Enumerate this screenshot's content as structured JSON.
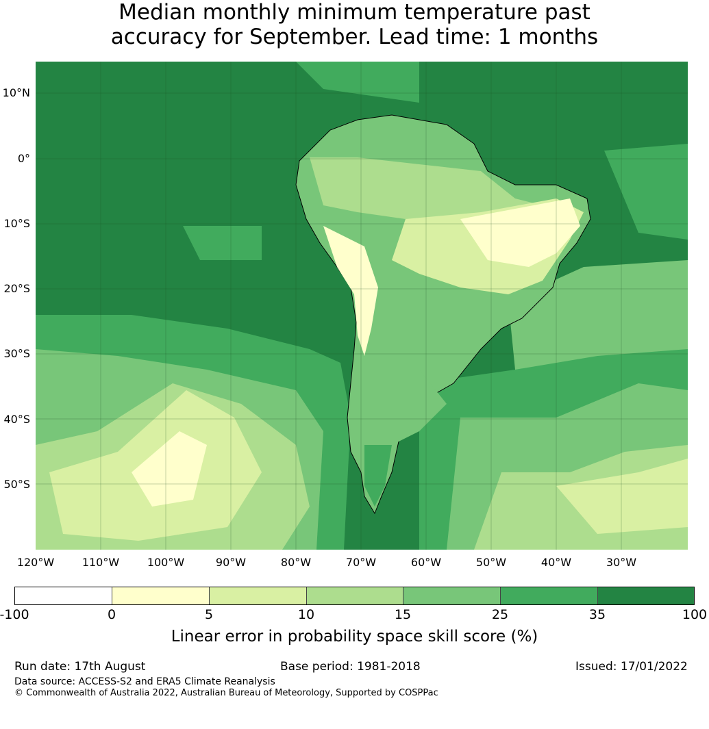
{
  "title_line1": "Median monthly minimum temperature past",
  "title_line2": "accuracy for September. Lead time: 1 months",
  "lat_labels": [
    "10°N",
    "0°",
    "10°S",
    "20°S",
    "30°S",
    "40°S",
    "50°S"
  ],
  "lon_labels": [
    "120°W",
    "110°W",
    "100°W",
    "90°W",
    "80°W",
    "70°W",
    "60°W",
    "50°W",
    "40°W",
    "30°W"
  ],
  "colorbar": {
    "ticks": [
      "-100",
      "0",
      "5",
      "10",
      "15",
      "25",
      "35",
      "100"
    ],
    "colors": [
      "#ffffff",
      "#ffffcc",
      "#d9f0a3",
      "#addd8e",
      "#78c679",
      "#41ab5d",
      "#238443"
    ],
    "label": "Linear error in probability space skill score (%)"
  },
  "footer": {
    "run_date": "Run date: 17th August",
    "base_period": "Base period: 1981-2018",
    "issued": "Issued: 17/01/2022",
    "data_source": "Data source: ACCESS-S2 and ERA5 Climate Reanalysis",
    "copyright": "© Commonwealth of Australia 2022, Australian Bureau of Meteorology, Supported by COSPPac"
  }
}
